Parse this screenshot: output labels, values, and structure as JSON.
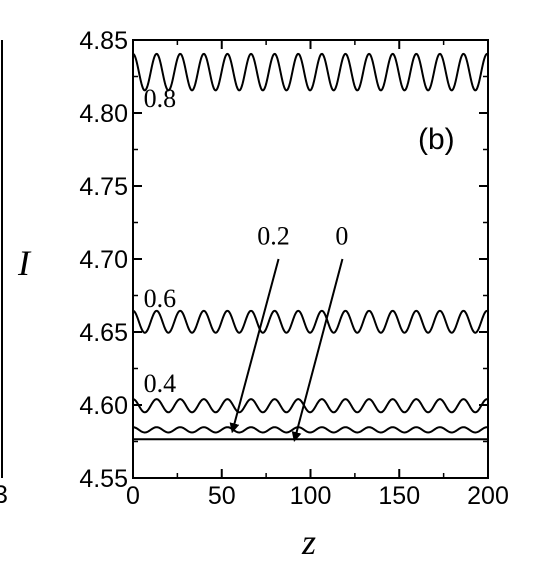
{
  "chart_data": {
    "type": "line",
    "title": "",
    "panel_label": "(b)",
    "xlabel": "z",
    "ylabel": "I",
    "xlim": [
      0,
      200
    ],
    "ylim": [
      4.55,
      4.85
    ],
    "grid": false,
    "x_ticks": [
      "0",
      "50",
      "100",
      "150",
      "200"
    ],
    "y_ticks": [
      "4.55",
      "4.60",
      "4.65",
      "4.70",
      "4.75",
      "4.80",
      "4.85"
    ],
    "edge_fragment_text": "3",
    "series": [
      {
        "label": "0",
        "mean": 4.5765,
        "amplitude": 0.0,
        "period": 13.3
      },
      {
        "label": "0.2",
        "mean": 4.583,
        "amplitude": 0.0018,
        "period": 13.3
      },
      {
        "label": "0.4",
        "mean": 4.5995,
        "amplitude": 0.0045,
        "period": 13.3
      },
      {
        "label": "0.6",
        "mean": 4.657,
        "amplitude": 0.0075,
        "period": 13.3
      },
      {
        "label": "0.8",
        "mean": 4.828,
        "amplitude": 0.0125,
        "period": 13.3
      }
    ],
    "annotations": [
      {
        "label": "0.2",
        "text_at": [
          70,
          4.71
        ],
        "arrow_from": [
          82,
          4.7
        ],
        "arrow_to": [
          56,
          4.582
        ]
      },
      {
        "label": "0",
        "text_at": [
          114,
          4.71
        ],
        "arrow_from": [
          118,
          4.7
        ],
        "arrow_to": [
          91,
          4.576
        ]
      }
    ]
  }
}
